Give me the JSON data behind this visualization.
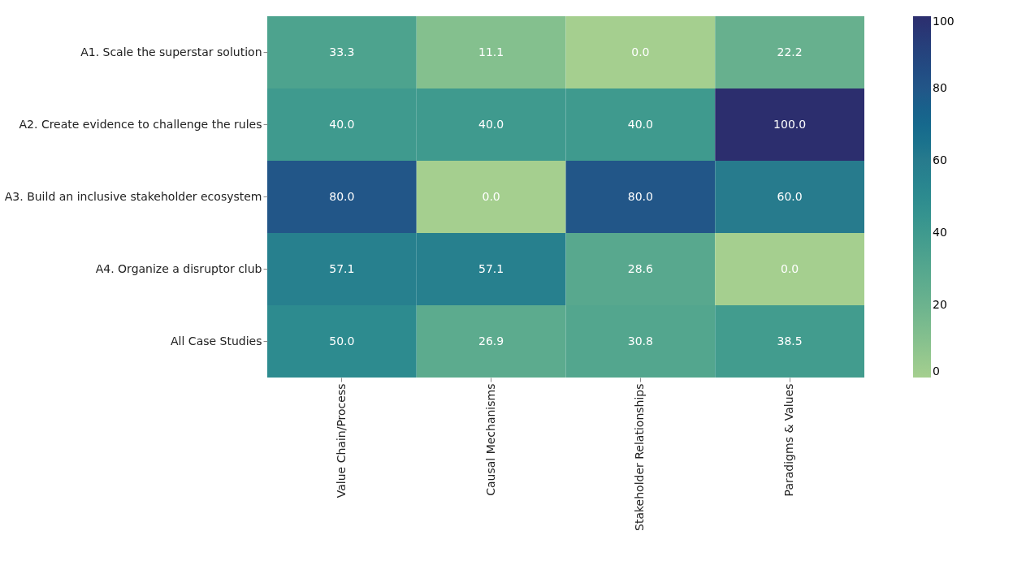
{
  "chart_data": {
    "type": "heatmap",
    "categories": [
      "Value Chain/Process",
      "Causal Mechanisms",
      "Stakeholder Relationships",
      "Paradigms & Values"
    ],
    "y_categories": [
      "A1. Scale the superstar solution",
      "A2. Create evidence to challenge the rules",
      "A3. Build an inclusive stakeholder ecosystem",
      "A4. Organize a disruptor club",
      "All Case Studies"
    ],
    "cells": [
      [
        33.3,
        11.1,
        0.0,
        22.2
      ],
      [
        40.0,
        40.0,
        40.0,
        100.0
      ],
      [
        80.0,
        0.0,
        80.0,
        60.0
      ],
      [
        57.1,
        57.1,
        28.6,
        0.0
      ],
      [
        50.0,
        26.9,
        30.8,
        38.5
      ]
    ],
    "cell_labels": [
      [
        "33.3",
        "11.1",
        "0.0",
        "22.2"
      ],
      [
        "40.0",
        "40.0",
        "40.0",
        "100.0"
      ],
      [
        "80.0",
        "0.0",
        "80.0",
        "60.0"
      ],
      [
        "57.1",
        "57.1",
        "28.6",
        "0.0"
      ],
      [
        "50.0",
        "26.9",
        "30.8",
        "38.5"
      ]
    ],
    "clim": [
      0,
      100
    ],
    "cticks": [
      0,
      20,
      40,
      60,
      80,
      100
    ]
  }
}
